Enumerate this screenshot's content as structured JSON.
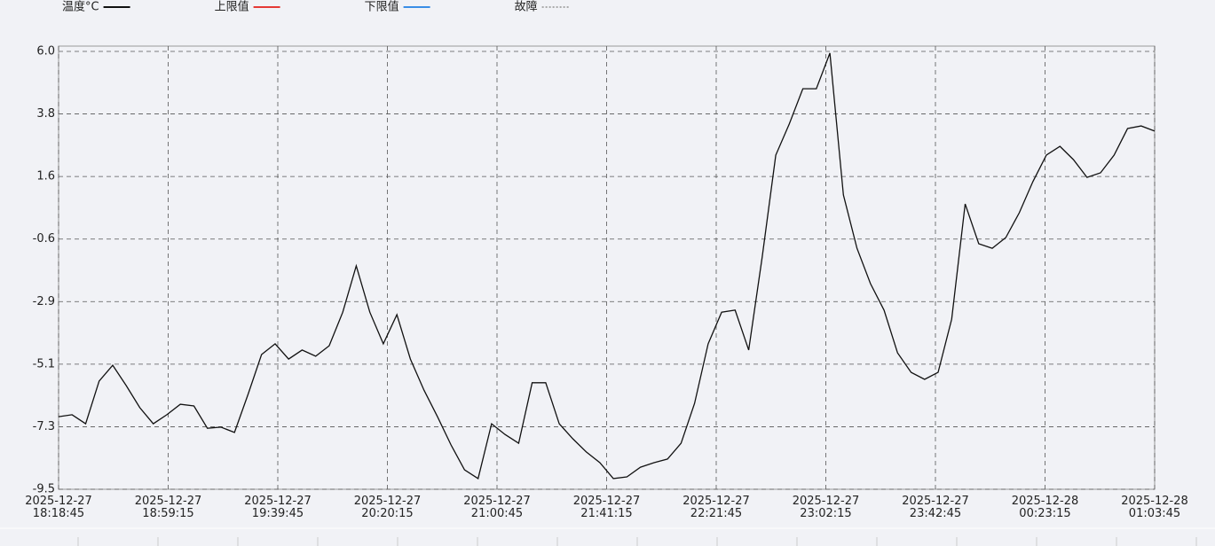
{
  "chart_data": {
    "type": "line",
    "series": [
      {
        "name": "温度°C",
        "color": "#111111",
        "values": [
          -6.93,
          -6.86,
          -7.18,
          -5.67,
          -5.11,
          -5.83,
          -6.61,
          -7.18,
          -6.86,
          -6.49,
          -6.55,
          -7.34,
          -7.3,
          -7.49,
          -6.14,
          -4.73,
          -4.35,
          -4.89,
          -4.57,
          -4.79,
          -4.42,
          -3.23,
          -1.59,
          -3.23,
          -4.35,
          -3.32,
          -4.89,
          -5.99,
          -6.93,
          -7.93,
          -8.81,
          -9.12,
          -7.18,
          -7.56,
          -7.87,
          -5.73,
          -5.73,
          -7.18,
          -7.71,
          -8.18,
          -8.56,
          -9.12,
          -9.06,
          -8.72,
          -8.56,
          -8.43,
          -7.87,
          -6.46,
          -4.35,
          -3.23,
          -3.16,
          -4.57,
          -1.28,
          2.33,
          3.43,
          4.68,
          4.68,
          5.94,
          0.92,
          -0.97,
          -2.22,
          -3.16,
          -4.67,
          -5.36,
          -5.61,
          -5.36,
          -3.48,
          0.6,
          -0.81,
          -0.97,
          -0.59,
          0.29,
          1.39,
          2.33,
          2.64,
          2.17,
          1.54,
          1.7,
          2.33,
          3.27,
          3.36,
          3.18
        ]
      }
    ],
    "legend_extra": [
      {
        "name": "上限值",
        "color": "#e53935"
      },
      {
        "name": "下限值",
        "color": "#3a8ee6"
      },
      {
        "name": "故障",
        "color": "#aaaaaa",
        "dashed": true
      }
    ],
    "x": [
      "2025-12-27 18:18:45",
      "2025-12-27 18:23:45",
      "2025-12-27 18:28:45",
      "2025-12-27 18:33:45",
      "2025-12-27 18:38:45",
      "2025-12-27 18:43:45",
      "2025-12-27 18:48:45",
      "2025-12-27 18:53:45",
      "2025-12-27 18:58:45",
      "2025-12-27 19:03:45",
      "2025-12-27 19:08:45",
      "2025-12-27 19:13:45",
      "2025-12-27 19:18:45",
      "2025-12-27 19:23:45",
      "2025-12-27 19:28:45",
      "2025-12-27 19:33:45",
      "2025-12-27 19:38:45",
      "2025-12-27 19:43:45",
      "2025-12-27 19:48:45",
      "2025-12-27 19:53:45",
      "2025-12-27 19:58:45",
      "2025-12-27 20:03:45",
      "2025-12-27 20:08:45",
      "2025-12-27 20:13:45",
      "2025-12-27 20:18:45",
      "2025-12-27 20:23:45",
      "2025-12-27 20:28:45",
      "2025-12-27 20:33:45",
      "2025-12-27 20:38:45",
      "2025-12-27 20:43:45",
      "2025-12-27 20:48:45",
      "2025-12-27 20:53:45",
      "2025-12-27 20:58:45",
      "2025-12-27 21:03:45",
      "2025-12-27 21:08:45",
      "2025-12-27 21:13:45",
      "2025-12-27 21:18:45",
      "2025-12-27 21:23:45",
      "2025-12-27 21:28:45",
      "2025-12-27 21:33:45",
      "2025-12-27 21:38:45",
      "2025-12-27 21:43:45",
      "2025-12-27 21:48:45",
      "2025-12-27 21:53:45",
      "2025-12-27 21:58:45",
      "2025-12-27 22:03:45",
      "2025-12-27 22:08:45",
      "2025-12-27 22:13:45",
      "2025-12-27 22:18:45",
      "2025-12-27 22:23:45",
      "2025-12-27 22:28:45",
      "2025-12-27 22:33:45",
      "2025-12-27 22:38:45",
      "2025-12-27 22:43:45",
      "2025-12-27 22:48:45",
      "2025-12-27 22:53:45",
      "2025-12-27 22:58:45",
      "2025-12-27 23:03:45",
      "2025-12-27 23:08:45",
      "2025-12-27 23:13:45",
      "2025-12-27 23:18:45",
      "2025-12-27 23:23:45",
      "2025-12-27 23:28:45",
      "2025-12-27 23:33:45",
      "2025-12-27 23:38:45",
      "2025-12-27 23:43:45",
      "2025-12-27 23:48:45",
      "2025-12-27 23:53:45",
      "2025-12-27 23:58:45",
      "2025-12-28 00:03:45",
      "2025-12-28 00:08:45",
      "2025-12-28 00:13:45",
      "2025-12-28 00:18:45",
      "2025-12-28 00:23:45",
      "2025-12-28 00:28:45",
      "2025-12-28 00:33:45",
      "2025-12-28 00:38:45",
      "2025-12-28 00:43:45",
      "2025-12-28 00:48:45",
      "2025-12-28 00:53:45",
      "2025-12-28 00:58:45",
      "2025-12-28 01:03:45"
    ],
    "xlim": [
      "2025-12-27 18:18:45",
      "2025-12-28 01:03:45"
    ],
    "xticks": [
      "2025-12-27 18:18:45",
      "2025-12-27 18:59:15",
      "2025-12-27 19:39:45",
      "2025-12-27 20:20:15",
      "2025-12-27 21:00:45",
      "2025-12-27 21:41:15",
      "2025-12-27 22:21:45",
      "2025-12-27 23:02:15",
      "2025-12-27 23:42:45",
      "2025-12-28 00:23:15",
      "2025-12-28 01:03:45"
    ],
    "ylim": [
      -9.5,
      6.0
    ],
    "yticks": [
      {
        "value": 6.0,
        "label": "6.0"
      },
      {
        "value": 3.786,
        "label": "3.8"
      },
      {
        "value": 1.571,
        "label": "1.6"
      },
      {
        "value": -0.643,
        "label": "-0.6"
      },
      {
        "value": -2.857,
        "label": "-2.9"
      },
      {
        "value": -5.071,
        "label": "-5.1"
      },
      {
        "value": -7.286,
        "label": "-7.3"
      },
      -9.5
    ],
    "grid": true
  }
}
